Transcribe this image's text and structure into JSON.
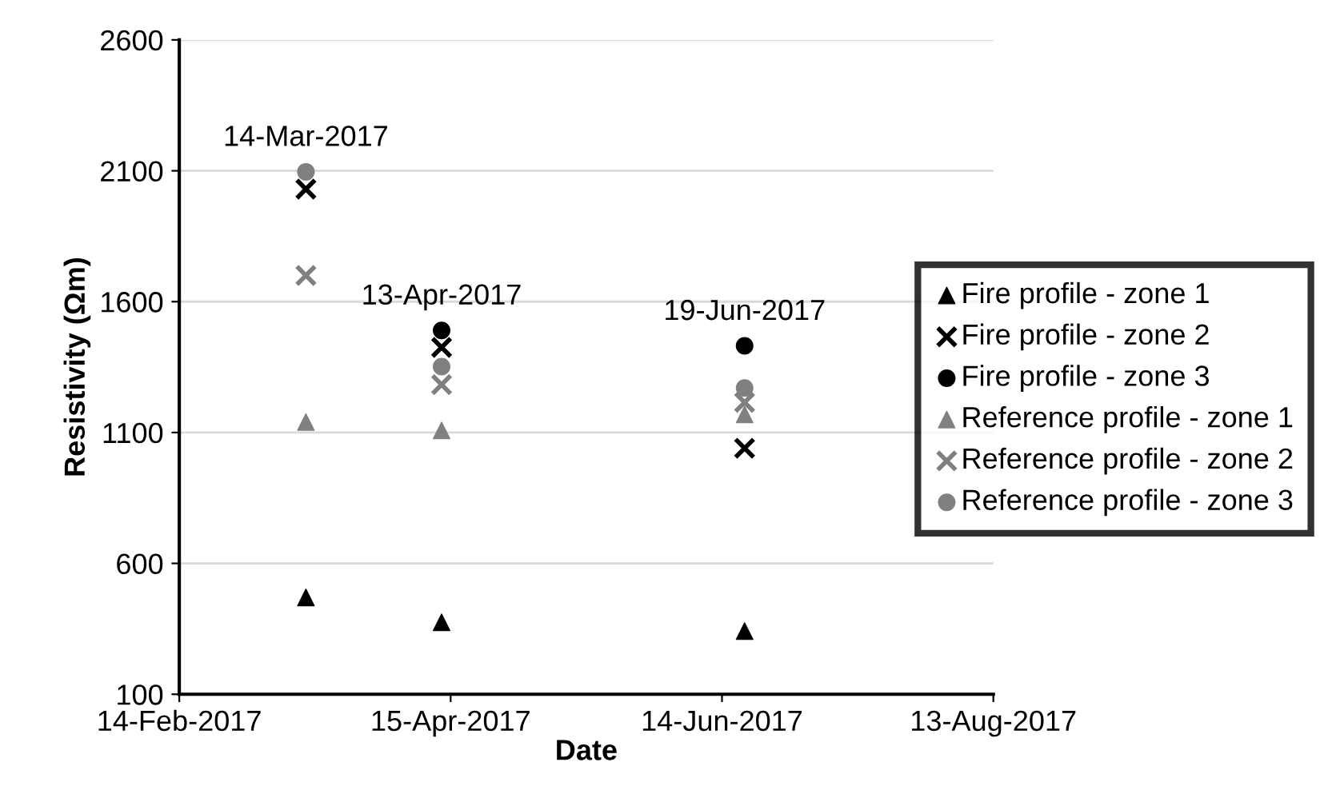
{
  "chart_data": {
    "type": "scatter",
    "xlabel": "Date",
    "ylabel": "Resistivity (Ωm)",
    "x": [
      "2017-03-14",
      "2017-04-13",
      "2017-06-19"
    ],
    "series": [
      {
        "name": "Fire profile - zone 1",
        "color": "#000000",
        "marker": "triangle",
        "values": [
          470,
          375,
          341
        ]
      },
      {
        "name": "Fire profile - zone 2",
        "color": "#000000",
        "marker": "cross",
        "values": [
          2030,
          1425,
          1040
        ]
      },
      {
        "name": "Fire profile - zone 3",
        "color": "#000000",
        "marker": "circle",
        "values": [
          null,
          1490,
          1431
        ]
      },
      {
        "name": "Reference profile - zone 1",
        "color": "#808080",
        "marker": "triangle",
        "values": [
          1140,
          1108,
          1169
        ]
      },
      {
        "name": "Reference profile - zone 2",
        "color": "#808080",
        "marker": "cross",
        "values": [
          1700,
          1283,
          1215
        ]
      },
      {
        "name": "Reference profile - zone 3",
        "color": "#808080",
        "marker": "circle",
        "values": [
          2096,
          1352,
          1270
        ]
      }
    ],
    "annotations": [
      {
        "text": "14-Mar-2017",
        "x": "2017-03-14",
        "y": 2096
      },
      {
        "text": "13-Apr-2017",
        "x": "2017-04-13",
        "y": 1490
      },
      {
        "text": "19-Jun-2017",
        "x": "2017-06-19",
        "y": 1431
      }
    ],
    "xlim": [
      "2017-02-14",
      "2017-08-13"
    ],
    "xticks": [
      {
        "value": "2017-02-14",
        "label": "14-Feb-2017"
      },
      {
        "value": "2017-04-15",
        "label": "15-Apr-2017"
      },
      {
        "value": "2017-06-14",
        "label": "14-Jun-2017"
      },
      {
        "value": "2017-08-13",
        "label": "13-Aug-2017"
      }
    ],
    "ylim": [
      100,
      2600
    ],
    "yticks": [
      100,
      600,
      1100,
      1600,
      2100,
      2600
    ],
    "grid": "y",
    "legend": "right"
  }
}
